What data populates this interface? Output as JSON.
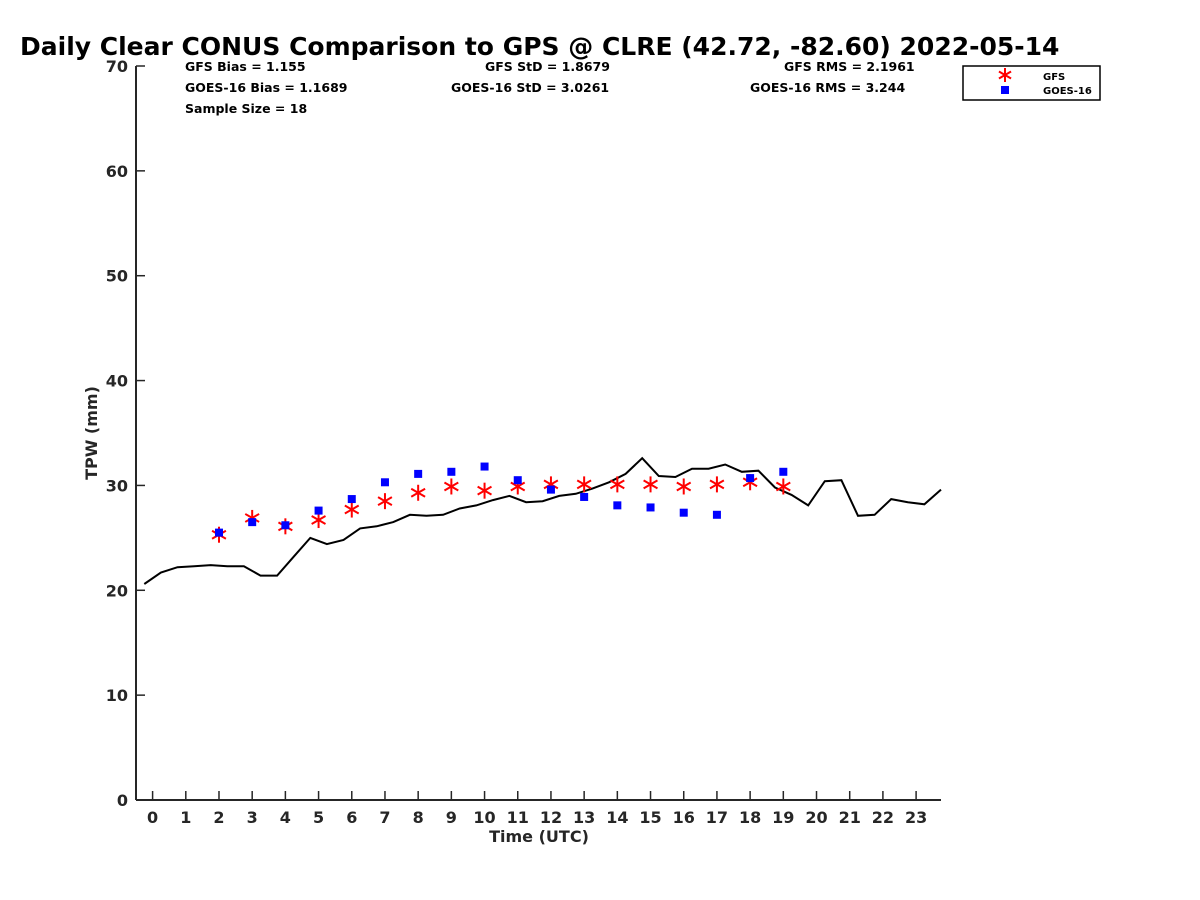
{
  "chart_data": {
    "type": "scatter",
    "title": "Daily Clear CONUS Comparison to GPS @ CLRE (42.72, -82.60) 2022-05-14",
    "xlabel": "Time (UTC)",
    "ylabel": "TPW (mm)",
    "xlim": [
      -0.5,
      23.75
    ],
    "ylim": [
      0,
      70
    ],
    "x_ticks": [
      0,
      1,
      2,
      3,
      4,
      5,
      6,
      7,
      8,
      9,
      10,
      11,
      12,
      13,
      14,
      15,
      16,
      17,
      18,
      19,
      20,
      21,
      22,
      23
    ],
    "y_ticks": [
      0,
      10,
      20,
      30,
      40,
      50,
      60,
      70
    ],
    "grid": false,
    "legend_position": "top-right",
    "stats": {
      "gfs_bias": "GFS Bias = 1.155",
      "goes_bias": "GOES-16 Bias = 1.1689",
      "sample_size": "Sample Size = 18",
      "gfs_std": "GFS StD = 1.8679",
      "goes_std": "GOES-16 StD = 3.0261",
      "gfs_rms": "GFS RMS = 2.1961",
      "goes_rms": "GOES-16 RMS = 3.244"
    },
    "series": [
      {
        "name": "GFS",
        "marker": "asterisk",
        "color": "#ff0000",
        "x": [
          2,
          3,
          4,
          5,
          6,
          7,
          8,
          9,
          10,
          11,
          12,
          13,
          14,
          15,
          16,
          17,
          18,
          19
        ],
        "y": [
          25.3,
          26.9,
          26.1,
          26.7,
          27.7,
          28.5,
          29.3,
          29.9,
          29.5,
          29.9,
          30.1,
          30.1,
          30.1,
          30.1,
          29.9,
          30.1,
          30.3,
          29.9
        ]
      },
      {
        "name": "GOES-16",
        "marker": "square",
        "color": "#0000ff",
        "x": [
          2,
          3,
          4,
          5,
          6,
          7,
          8,
          9,
          10,
          11,
          12,
          13,
          14,
          15,
          16,
          17,
          18,
          19
        ],
        "y": [
          25.5,
          26.5,
          26.2,
          27.6,
          28.7,
          30.3,
          31.1,
          31.3,
          31.8,
          30.5,
          29.6,
          28.9,
          28.1,
          27.9,
          27.4,
          27.2,
          30.7,
          31.3
        ]
      },
      {
        "name": "",
        "marker": "line",
        "color": "#000000",
        "x": [
          -0.25,
          0.25,
          0.75,
          1.25,
          1.75,
          2.25,
          2.75,
          3.25,
          3.75,
          4.25,
          4.75,
          5.25,
          5.75,
          6.25,
          6.75,
          7.25,
          7.75,
          8.25,
          8.75,
          9.25,
          9.75,
          10.25,
          10.75,
          11.25,
          11.75,
          12.25,
          12.75,
          13.25,
          13.75,
          14.25,
          14.75,
          15.25,
          15.75,
          16.25,
          16.75,
          17.25,
          17.75,
          18.25,
          18.75,
          19.25,
          19.75,
          20.25,
          20.75,
          21.25,
          21.75,
          22.25,
          22.75,
          23.25,
          23.75
        ],
        "y": [
          20.6,
          21.7,
          22.2,
          22.3,
          22.4,
          22.3,
          22.3,
          21.4,
          21.4,
          23.2,
          25.0,
          24.4,
          24.8,
          25.9,
          26.1,
          26.5,
          27.2,
          27.1,
          27.2,
          27.8,
          28.1,
          28.6,
          29.0,
          28.4,
          28.5,
          29.0,
          29.2,
          29.7,
          30.3,
          31.1,
          32.6,
          30.9,
          30.8,
          31.6,
          31.6,
          32.0,
          31.3,
          31.4,
          29.8,
          29.1,
          28.1,
          30.4,
          30.5,
          27.1,
          27.2,
          28.7,
          28.4,
          28.2,
          29.6
        ]
      }
    ]
  }
}
